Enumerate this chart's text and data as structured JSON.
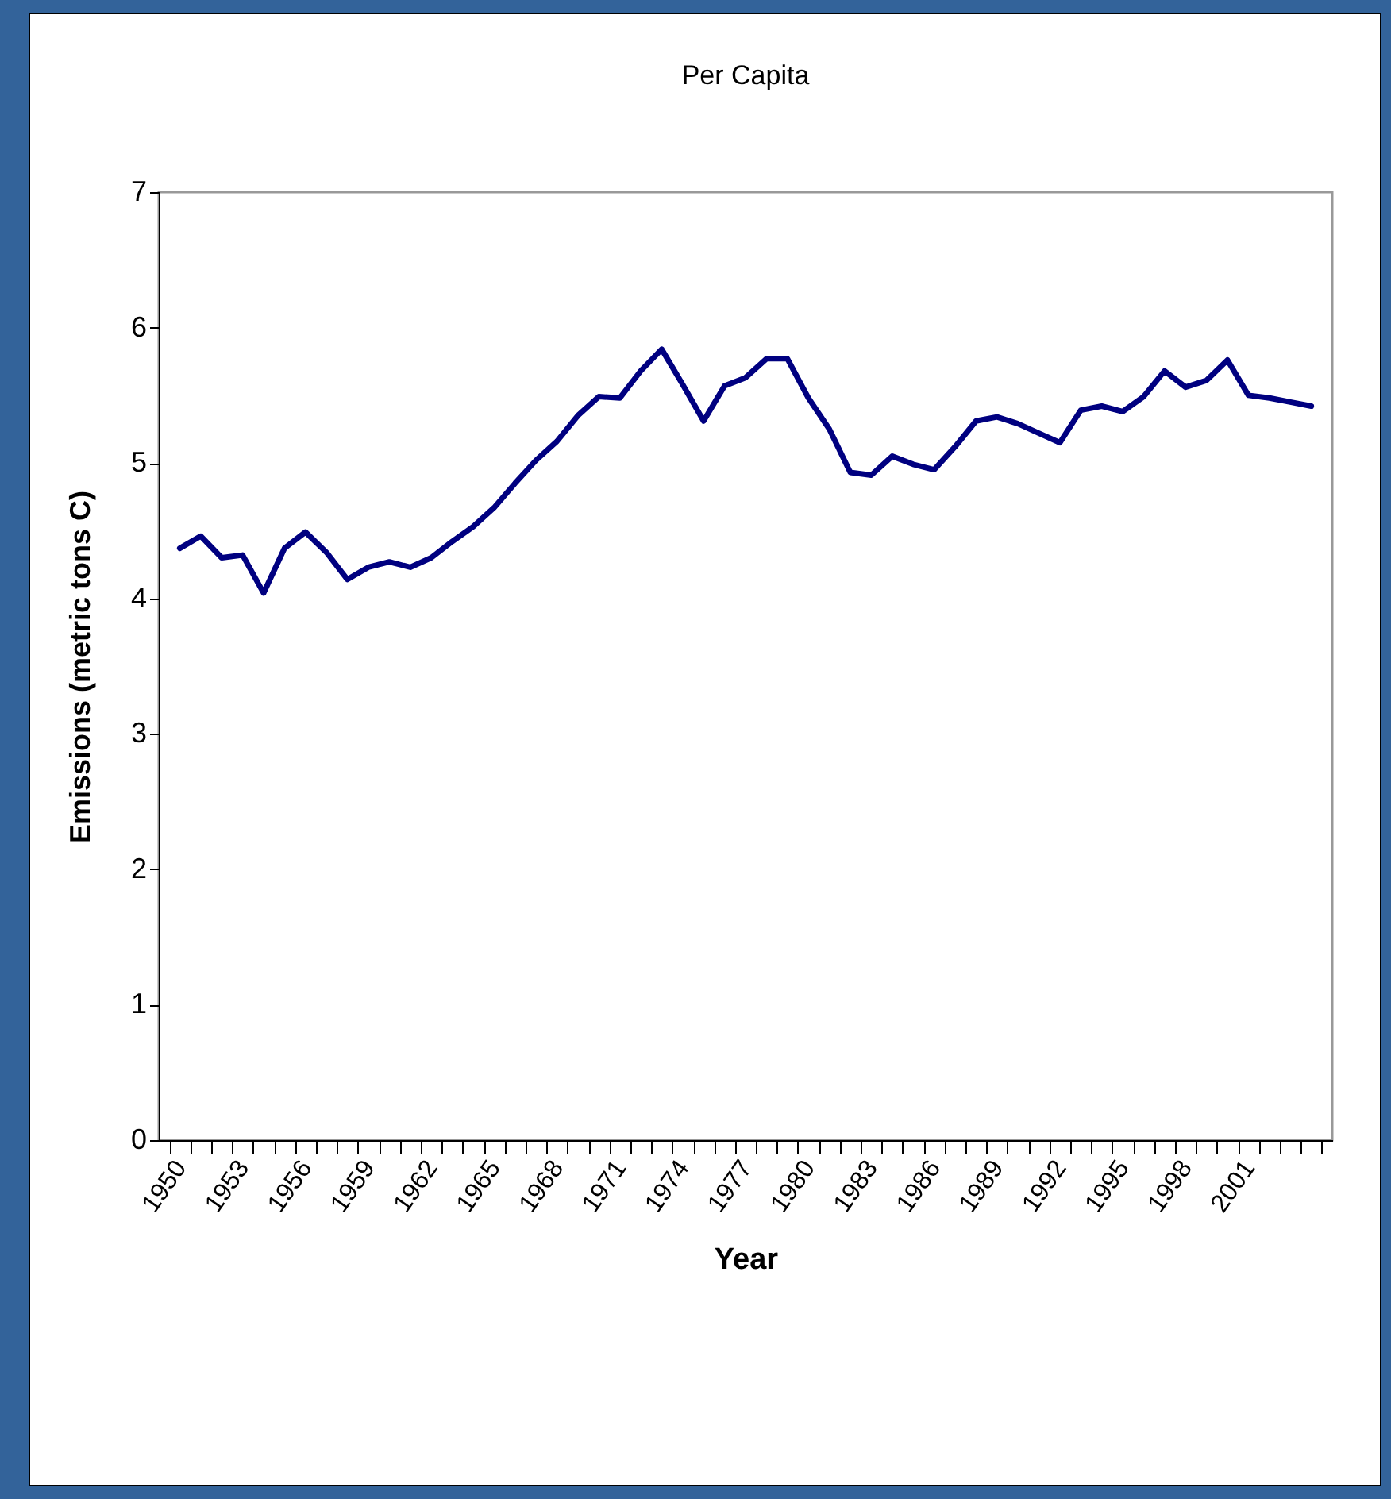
{
  "chart_data": {
    "type": "line",
    "title": "Per Capita",
    "xlabel": "Year",
    "ylabel": "Emissions (metric tons C)",
    "categories": [
      "1950",
      null,
      null,
      "1953",
      null,
      null,
      "1956",
      null,
      null,
      "1959",
      null,
      null,
      "1962",
      null,
      null,
      "1965",
      null,
      null,
      "1968",
      null,
      null,
      "1971",
      null,
      null,
      "1974",
      null,
      null,
      "1977",
      null,
      null,
      "1980",
      null,
      null,
      "1983",
      null,
      null,
      "1986",
      null,
      null,
      "1989",
      null,
      null,
      "1992",
      null,
      null,
      "1995",
      null,
      null,
      "1998",
      null,
      null,
      "2001",
      null,
      null,
      null
    ],
    "series": [
      {
        "color": "#000080",
        "values": [
          4.37,
          4.46,
          4.3,
          4.32,
          4.04,
          4.37,
          4.49,
          4.34,
          4.14,
          4.23,
          4.27,
          4.23,
          4.3,
          4.42,
          4.53,
          4.67,
          4.85,
          5.02,
          5.16,
          5.35,
          5.49,
          5.48,
          5.68,
          5.84,
          5.58,
          5.31,
          5.57,
          5.63,
          5.77,
          5.77,
          5.48,
          5.25,
          4.93,
          4.91,
          5.05,
          4.99,
          4.95,
          5.12,
          5.31,
          5.34,
          5.29,
          5.22,
          5.15,
          5.39,
          5.42,
          5.38,
          5.49,
          5.68,
          5.56,
          5.61,
          5.76,
          5.5,
          5.48,
          5.45,
          5.42
        ]
      }
    ],
    "ylim": [
      0,
      7
    ],
    "yticks": [
      0,
      1,
      2,
      3,
      4,
      5,
      6,
      7
    ],
    "grid": false,
    "legend": false,
    "marker": "none",
    "line_style": "solid"
  }
}
